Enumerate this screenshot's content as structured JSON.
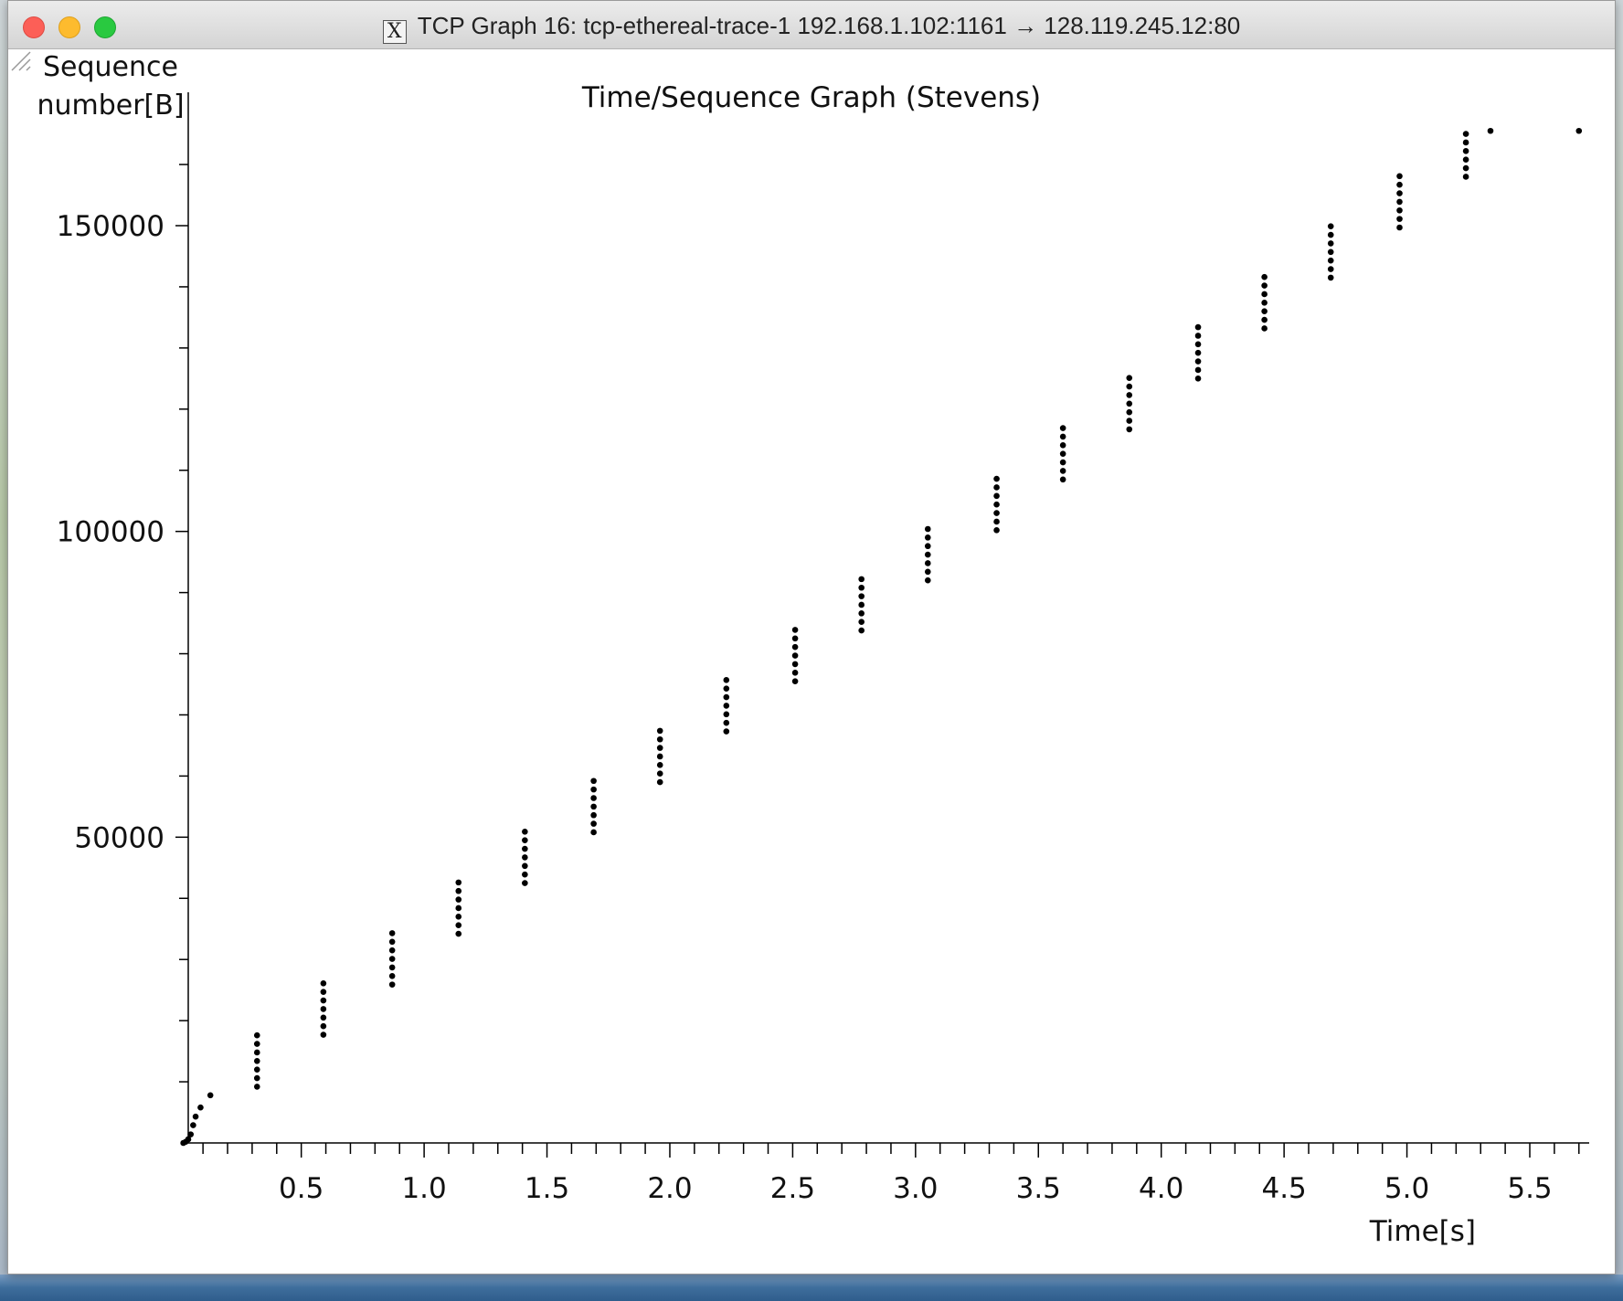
{
  "window": {
    "title": "TCP Graph 16: tcp-ethereal-trace-1 192.168.1.102:1161 → 128.119.245.12:80",
    "x11_icon": "X"
  },
  "chart_data": {
    "type": "scatter",
    "title": "Time/Sequence Graph (Stevens)",
    "xlabel": "Time[s]",
    "ylabel": "Sequence\nnumber[B]",
    "xlim": [
      0.0,
      5.8
    ],
    "ylim": [
      0,
      166000
    ],
    "x_ticks": [
      0.5,
      1.0,
      1.5,
      2.0,
      2.5,
      3.0,
      3.5,
      4.0,
      4.5,
      5.0,
      5.5
    ],
    "x_tick_labels": [
      "0.5",
      "1.0",
      "1.5",
      "2.0",
      "2.5",
      "3.0",
      "3.5",
      "4.0",
      "4.5",
      "5.0",
      "5.5"
    ],
    "y_ticks": [
      50000,
      100000,
      150000
    ],
    "y_tick_labels": [
      "50000",
      "100000",
      "150000"
    ],
    "grid": false,
    "series": [
      {
        "marker": "dot",
        "color": "#000000",
        "points": [
          [
            0.02,
            0
          ],
          [
            0.03,
            200
          ],
          [
            0.04,
            600
          ],
          [
            0.05,
            1400
          ],
          [
            0.06,
            2900
          ],
          [
            0.07,
            4300
          ],
          [
            0.09,
            5800
          ],
          [
            0.13,
            7800
          ],
          [
            0.32,
            9200
          ],
          [
            0.32,
            10600
          ],
          [
            0.32,
            12000
          ],
          [
            0.32,
            13400
          ],
          [
            0.32,
            14800
          ],
          [
            0.32,
            16200
          ],
          [
            0.32,
            17600
          ],
          [
            0.59,
            17700
          ],
          [
            0.59,
            19100
          ],
          [
            0.59,
            20500
          ],
          [
            0.59,
            21900
          ],
          [
            0.59,
            23300
          ],
          [
            0.59,
            24700
          ],
          [
            0.59,
            26100
          ],
          [
            0.87,
            25900
          ],
          [
            0.87,
            27300
          ],
          [
            0.87,
            28700
          ],
          [
            0.87,
            30100
          ],
          [
            0.87,
            31500
          ],
          [
            0.87,
            32900
          ],
          [
            0.87,
            34300
          ],
          [
            1.14,
            34200
          ],
          [
            1.14,
            35600
          ],
          [
            1.14,
            37000
          ],
          [
            1.14,
            38400
          ],
          [
            1.14,
            39800
          ],
          [
            1.14,
            41200
          ],
          [
            1.14,
            42600
          ],
          [
            1.41,
            42500
          ],
          [
            1.41,
            43900
          ],
          [
            1.41,
            45300
          ],
          [
            1.41,
            46700
          ],
          [
            1.41,
            48100
          ],
          [
            1.41,
            49500
          ],
          [
            1.41,
            50900
          ],
          [
            1.69,
            50800
          ],
          [
            1.69,
            52200
          ],
          [
            1.69,
            53600
          ],
          [
            1.69,
            55000
          ],
          [
            1.69,
            56400
          ],
          [
            1.69,
            57800
          ],
          [
            1.69,
            59200
          ],
          [
            1.96,
            59000
          ],
          [
            1.96,
            60400
          ],
          [
            1.96,
            61800
          ],
          [
            1.96,
            63200
          ],
          [
            1.96,
            64600
          ],
          [
            1.96,
            66000
          ],
          [
            1.96,
            67400
          ],
          [
            2.23,
            67300
          ],
          [
            2.23,
            68700
          ],
          [
            2.23,
            70100
          ],
          [
            2.23,
            71500
          ],
          [
            2.23,
            72900
          ],
          [
            2.23,
            74300
          ],
          [
            2.23,
            75700
          ],
          [
            2.51,
            75500
          ],
          [
            2.51,
            76900
          ],
          [
            2.51,
            78300
          ],
          [
            2.51,
            79700
          ],
          [
            2.51,
            81100
          ],
          [
            2.51,
            82500
          ],
          [
            2.51,
            83900
          ],
          [
            2.78,
            83800
          ],
          [
            2.78,
            85200
          ],
          [
            2.78,
            86600
          ],
          [
            2.78,
            88000
          ],
          [
            2.78,
            89400
          ],
          [
            2.78,
            90800
          ],
          [
            2.78,
            92200
          ],
          [
            3.05,
            92000
          ],
          [
            3.05,
            93400
          ],
          [
            3.05,
            94800
          ],
          [
            3.05,
            96200
          ],
          [
            3.05,
            97600
          ],
          [
            3.05,
            99000
          ],
          [
            3.05,
            100400
          ],
          [
            3.33,
            100200
          ],
          [
            3.33,
            101600
          ],
          [
            3.33,
            103000
          ],
          [
            3.33,
            104400
          ],
          [
            3.33,
            105800
          ],
          [
            3.33,
            107200
          ],
          [
            3.33,
            108600
          ],
          [
            3.6,
            108500
          ],
          [
            3.6,
            109900
          ],
          [
            3.6,
            111300
          ],
          [
            3.6,
            112700
          ],
          [
            3.6,
            114100
          ],
          [
            3.6,
            115500
          ],
          [
            3.6,
            116900
          ],
          [
            3.87,
            116700
          ],
          [
            3.87,
            118100
          ],
          [
            3.87,
            119500
          ],
          [
            3.87,
            120900
          ],
          [
            3.87,
            122300
          ],
          [
            3.87,
            123700
          ],
          [
            3.87,
            125100
          ],
          [
            4.15,
            125000
          ],
          [
            4.15,
            126400
          ],
          [
            4.15,
            127800
          ],
          [
            4.15,
            129200
          ],
          [
            4.15,
            130600
          ],
          [
            4.15,
            132000
          ],
          [
            4.15,
            133400
          ],
          [
            4.42,
            133200
          ],
          [
            4.42,
            134600
          ],
          [
            4.42,
            136000
          ],
          [
            4.42,
            137400
          ],
          [
            4.42,
            138800
          ],
          [
            4.42,
            140200
          ],
          [
            4.42,
            141600
          ],
          [
            4.69,
            141500
          ],
          [
            4.69,
            142900
          ],
          [
            4.69,
            144300
          ],
          [
            4.69,
            145700
          ],
          [
            4.69,
            147100
          ],
          [
            4.69,
            148500
          ],
          [
            4.69,
            149900
          ],
          [
            4.97,
            149700
          ],
          [
            4.97,
            151100
          ],
          [
            4.97,
            152500
          ],
          [
            4.97,
            153900
          ],
          [
            4.97,
            155300
          ],
          [
            4.97,
            156700
          ],
          [
            4.97,
            158100
          ],
          [
            5.24,
            158000
          ],
          [
            5.24,
            159400
          ],
          [
            5.24,
            160800
          ],
          [
            5.24,
            162200
          ],
          [
            5.24,
            163600
          ],
          [
            5.24,
            165000
          ],
          [
            5.34,
            165500
          ],
          [
            5.7,
            165500
          ]
        ]
      }
    ]
  }
}
